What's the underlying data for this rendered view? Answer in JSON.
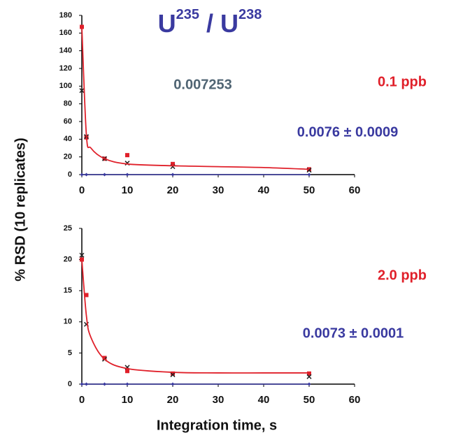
{
  "title": [
    "U",
    "235",
    " / U",
    "238"
  ],
  "y_label": "% RSD (10 replicates)",
  "x_label": "Integration time, s",
  "chart_data": [
    {
      "type": "scatter",
      "x": [
        0,
        1,
        5,
        10,
        20,
        50
      ],
      "series": [
        {
          "color": "#e0202a",
          "marker": "square",
          "values": [
            167,
            42,
            18,
            22,
            12,
            6
          ]
        },
        {
          "color": "#222222",
          "marker": "x",
          "values": [
            95,
            43,
            18,
            13,
            9,
            5
          ]
        },
        {
          "color": "#3a3aa0",
          "marker": "diamond",
          "line": true,
          "values": [
            0,
            0,
            0,
            0,
            0,
            0
          ]
        },
        {
          "color": "#e0202a",
          "marker": "none",
          "curve": true,
          "x": [
            0,
            1,
            2,
            5,
            10,
            20,
            30,
            40,
            50
          ],
          "values": [
            167,
            45,
            30,
            18,
            12,
            10,
            9,
            8,
            6
          ]
        }
      ],
      "xlim": [
        0,
        60
      ],
      "xticks": [
        0,
        10,
        20,
        30,
        40,
        50,
        60
      ],
      "ylim": [
        0,
        180
      ],
      "yticks": [
        0,
        20,
        40,
        60,
        80,
        100,
        120,
        140,
        160,
        180
      ],
      "annotations": [
        {
          "text": "0.007253",
          "color": "#4f6473"
        },
        {
          "text": "0.1 ppb",
          "color": "#e0202a"
        },
        {
          "text": "0.0076 ± 0.0009",
          "color": "#3a3aa0"
        }
      ]
    },
    {
      "type": "scatter",
      "x": [
        0,
        1,
        5,
        10,
        20,
        50
      ],
      "series": [
        {
          "color": "#e0202a",
          "marker": "square",
          "values": [
            20,
            14.3,
            4.2,
            2.1,
            1.7,
            1.7
          ]
        },
        {
          "color": "#222222",
          "marker": "x",
          "values": [
            20.7,
            9.6,
            4,
            2.7,
            1.5,
            1.2
          ]
        },
        {
          "color": "#3a3aa0",
          "marker": "diamond",
          "line": true,
          "values": [
            0,
            0,
            0,
            0,
            0,
            0
          ]
        },
        {
          "color": "#e0202a",
          "marker": "none",
          "curve": true,
          "x": [
            0,
            1,
            2,
            5,
            10,
            20,
            30,
            40,
            50
          ],
          "values": [
            20,
            11,
            7.5,
            4,
            2.5,
            1.9,
            1.8,
            1.8,
            1.8
          ]
        }
      ],
      "xlim": [
        0,
        60
      ],
      "xticks": [
        0,
        10,
        20,
        30,
        40,
        50,
        60
      ],
      "ylim": [
        0,
        25
      ],
      "yticks": [
        0,
        5,
        10,
        15,
        20,
        25
      ],
      "annotations": [
        {
          "text": "2.0 ppb",
          "color": "#e0202a"
        },
        {
          "text": "0.0073 ± 0.0001",
          "color": "#3a3aa0"
        }
      ]
    }
  ]
}
